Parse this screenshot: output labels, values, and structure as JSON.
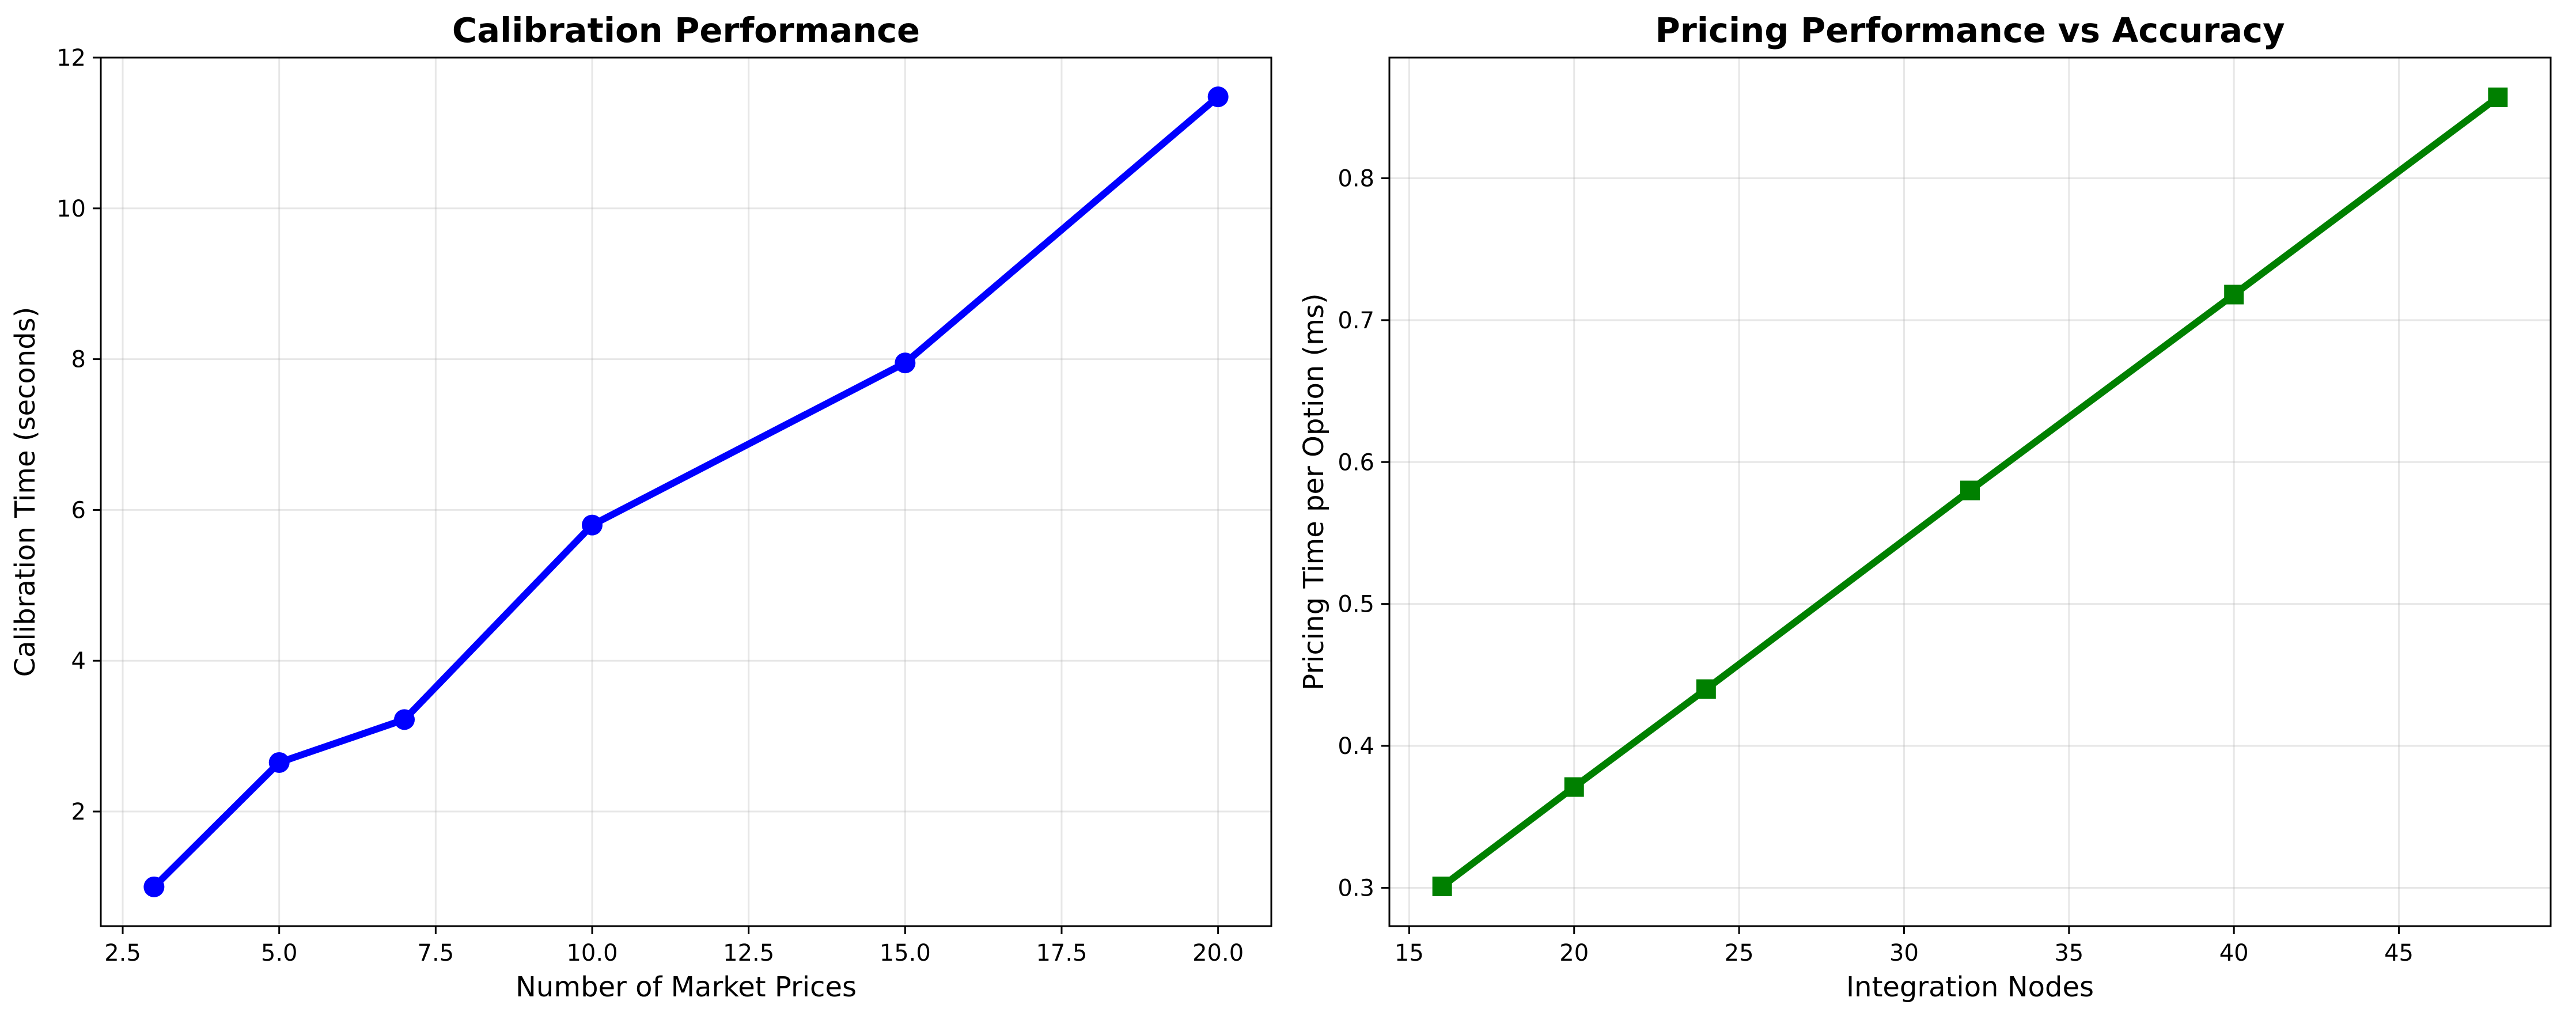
{
  "chart_data": [
    {
      "type": "line",
      "title": "Calibration Performance",
      "xlabel": "Number of Market Prices",
      "ylabel": "Calibration Time (seconds)",
      "xlim": [
        2.15,
        20.85
      ],
      "ylim": [
        0.48,
        12.0
      ],
      "xticks": [
        2.5,
        5.0,
        7.5,
        10.0,
        12.5,
        15.0,
        17.5,
        20.0
      ],
      "xtick_labels": [
        "2.5",
        "5.0",
        "7.5",
        "10.0",
        "12.5",
        "15.0",
        "17.5",
        "20.0"
      ],
      "yticks": [
        2,
        4,
        6,
        8,
        10,
        12
      ],
      "ytick_labels": [
        "2",
        "4",
        "6",
        "8",
        "10",
        "12"
      ],
      "grid": true,
      "marker": "circle",
      "color": "#0000ff",
      "series": [
        {
          "x": [
            3,
            5,
            7,
            10,
            15,
            20
          ],
          "values": [
            1.0,
            2.65,
            3.22,
            5.8,
            7.95,
            11.48
          ]
        }
      ]
    },
    {
      "type": "line",
      "title": "Pricing Performance vs Accuracy",
      "xlabel": "Integration Nodes",
      "ylabel": "Pricing Time per Option (ms)",
      "xlim": [
        14.4,
        49.6
      ],
      "ylim": [
        0.273,
        0.885
      ],
      "xticks": [
        15,
        20,
        25,
        30,
        35,
        40,
        45
      ],
      "xtick_labels": [
        "15",
        "20",
        "25",
        "30",
        "35",
        "40",
        "45"
      ],
      "yticks": [
        0.3,
        0.4,
        0.5,
        0.6,
        0.7,
        0.8
      ],
      "ytick_labels": [
        "0.3",
        "0.4",
        "0.5",
        "0.6",
        "0.7",
        "0.8"
      ],
      "grid": true,
      "marker": "square",
      "color": "#008000",
      "series": [
        {
          "x": [
            16,
            20,
            24,
            32,
            40,
            48
          ],
          "values": [
            0.301,
            0.371,
            0.44,
            0.58,
            0.718,
            0.857
          ]
        }
      ]
    }
  ]
}
